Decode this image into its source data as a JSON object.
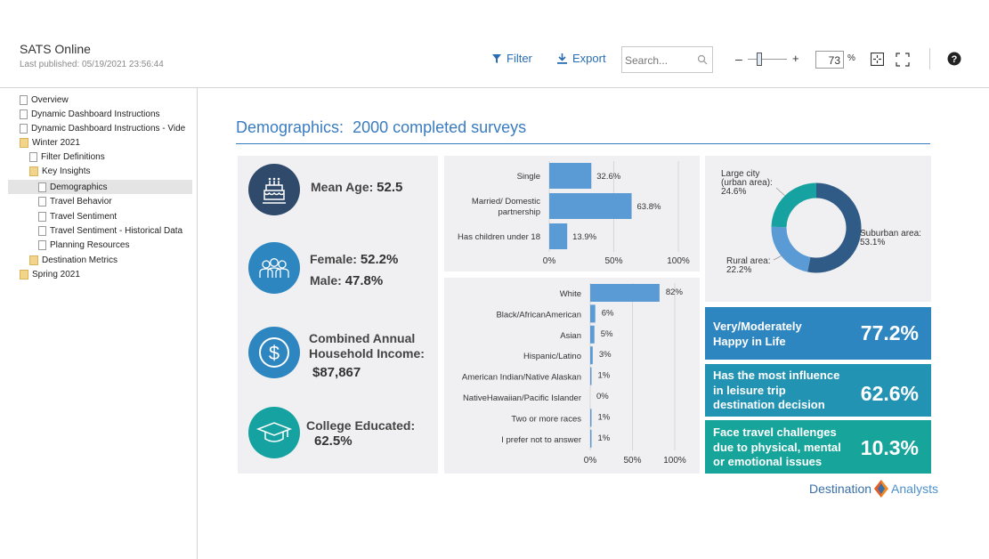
{
  "app": {
    "title": "SATS Online",
    "last_published": "Last published: 05/19/2021 23:56:44"
  },
  "toolbar": {
    "filter_label": "Filter",
    "export_label": "Export",
    "search_placeholder": "Search...",
    "zoom_minus": "–",
    "zoom_plus": "+",
    "zoom_value": "73",
    "zoom_unit": "%",
    "zoom_level": 0.3
  },
  "sidebar": {
    "items": [
      {
        "label": "Overview",
        "type": "page"
      },
      {
        "label": "Dynamic Dashboard Instructions",
        "type": "page"
      },
      {
        "label": "Dynamic Dashboard Instructions - Vide",
        "type": "page"
      },
      {
        "label": "Winter 2021",
        "type": "folder"
      },
      {
        "label": "Filter Definitions",
        "type": "page"
      },
      {
        "label": "Key Insights",
        "type": "folder"
      },
      {
        "label": "Demographics",
        "type": "page",
        "active": true
      },
      {
        "label": "Travel Behavior",
        "type": "page"
      },
      {
        "label": "Travel Sentiment",
        "type": "page"
      },
      {
        "label": "Travel Sentiment - Historical Data",
        "type": "page"
      },
      {
        "label": "Planning Resources",
        "type": "page"
      },
      {
        "label": "Destination Metrics",
        "type": "folder"
      },
      {
        "label": "Spring 2021",
        "type": "folder"
      }
    ]
  },
  "dashboard": {
    "title": "Demographics:",
    "subtitle": "2000 completed surveys",
    "kpis": {
      "mean_age_label": "Mean Age:",
      "mean_age_value": "52.5",
      "female_label": "Female:",
      "female_value": "52.2%",
      "male_label": "Male:",
      "male_value": "47.8%",
      "income_label_1": "Combined Annual",
      "income_label_2": "Household Income:",
      "income_value": "$87,867",
      "college_label": "College Educated:",
      "college_value": "62.5%"
    },
    "stats": [
      {
        "label_1": "Very/Moderately",
        "label_2": "Happy in Life",
        "label_3": "",
        "value": "77.2%"
      },
      {
        "label_1": "Has the most influence",
        "label_2": "in leisure trip",
        "label_3": "destination decision",
        "value": "62.6%"
      },
      {
        "label_1": "Face travel challenges",
        "label_2": "due to physical, mental",
        "label_3": "or emotional issues",
        "value": "10.3%"
      }
    ],
    "logo_text_1": "Destination",
    "logo_text_2": "Analysts"
  },
  "colors": {
    "accent": "#3a7cc0",
    "bar": "#5b9bd5",
    "navy_icon": "#2f4a6b",
    "blue_icon": "#2e86c1",
    "teal_icon": "#17a2a2",
    "stat_1": "#2e86c1",
    "stat_2": "#2393b3",
    "stat_3": "#17a59b",
    "donut_suburban": "#2f5b86",
    "donut_rural": "#5b9bd5",
    "donut_city": "#17a2a2"
  },
  "chart_data": [
    {
      "type": "bar",
      "orientation": "horizontal",
      "categories": [
        "Single",
        "Married/ Domestic partnership",
        "Has children under 18"
      ],
      "values": [
        32.6,
        63.8,
        13.9
      ],
      "value_labels": [
        "32.6%",
        "63.8%",
        "13.9%"
      ],
      "xlim": [
        0,
        100
      ],
      "ticks": [
        "0%",
        "50%",
        "100%"
      ]
    },
    {
      "type": "bar",
      "orientation": "horizontal",
      "categories": [
        "White",
        "Black/AfricanAmerican",
        "Asian",
        "Hispanic/Latino",
        "American Indian/Native Alaskan",
        "NativeHawaiian/Pacific Islander",
        "Two or more races",
        "I prefer not to answer"
      ],
      "values": [
        82,
        6,
        5,
        3,
        1,
        0,
        1,
        1
      ],
      "value_labels": [
        "82%",
        "6%",
        "5%",
        "3%",
        "1%",
        "0%",
        "1%",
        "1%"
      ],
      "xlim": [
        0,
        100
      ],
      "ticks": [
        "0%",
        "50%",
        "100%"
      ]
    },
    {
      "type": "pie",
      "donut": true,
      "slices": [
        {
          "label_1": "Suburban area:",
          "label_2": "53.1%",
          "value": 53.1
        },
        {
          "label_1": "Rural area:",
          "label_2": "22.2%",
          "value": 22.2
        },
        {
          "label_1": "Large city",
          "label_2": "(urban area):",
          "label_3": "24.6%",
          "value": 24.6
        }
      ]
    }
  ]
}
